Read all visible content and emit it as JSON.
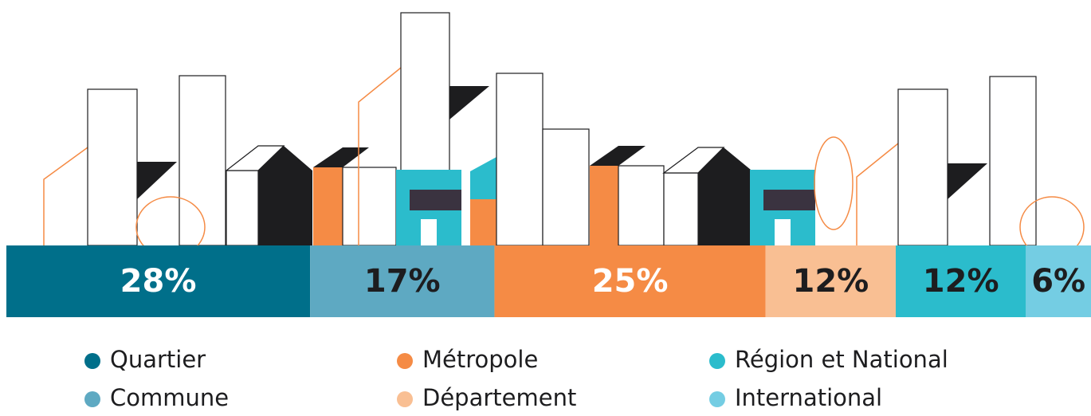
{
  "chart_data": {
    "type": "stacked_bar",
    "xlim": [
      0,
      100
    ],
    "series": [
      {
        "name": "Quartier",
        "color": "#006f8a",
        "label_color": "#ffffff",
        "values": [
          28
        ],
        "value_labels": [
          "28%"
        ]
      },
      {
        "name": "Commune",
        "color": "#5ea9c2",
        "label_color": "#1d1d1f",
        "values": [
          17
        ],
        "value_labels": [
          "17%"
        ]
      },
      {
        "name": "Métropole",
        "color": "#f58b45",
        "label_color": "#ffffff",
        "values": [
          25
        ],
        "value_labels": [
          "25%"
        ]
      },
      {
        "name": "Département",
        "color": "#f9bf93",
        "label_color": "#1d1d1f",
        "values": [
          12
        ],
        "value_labels": [
          "12%"
        ]
      },
      {
        "name": "Région et National",
        "color": "#2bbccc",
        "label_color": "#1d1d1f",
        "values": [
          12
        ],
        "value_labels": [
          "12%"
        ]
      },
      {
        "name": "International",
        "color": "#74cde3",
        "label_color": "#1d1d1f",
        "values": [
          6
        ],
        "value_labels": [
          "6%"
        ]
      }
    ]
  }
}
